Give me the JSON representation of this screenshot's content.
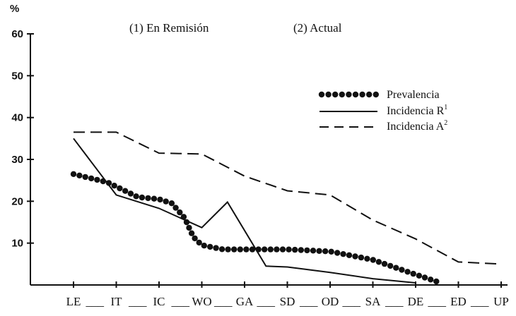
{
  "chart_data": {
    "type": "line",
    "header_notes": [
      "(1)  En Remisión",
      "(2)  Actual"
    ],
    "ylabel": "%",
    "ylim": [
      0,
      60
    ],
    "yticks": [
      10,
      20,
      30,
      40,
      50,
      60
    ],
    "categories": [
      "LE",
      "IT",
      "IC",
      "WO",
      "GA",
      "SD",
      "OD",
      "SA",
      "DE",
      "ED",
      "UP"
    ],
    "category_separators": [
      "___",
      "___",
      "___",
      "___",
      "___",
      "___",
      "___",
      "___",
      "___",
      "___"
    ],
    "grid": false,
    "legend_position": "top-right",
    "legend_superscripts": [
      "1",
      "2"
    ],
    "series": [
      {
        "name": "Prevalencia",
        "style": "dotted",
        "points": [
          [
            0,
            26.5
          ],
          [
            0.8,
            24.5
          ],
          [
            1.5,
            21
          ],
          [
            2,
            20.5
          ],
          [
            2.3,
            19.5
          ],
          [
            2.6,
            16
          ],
          [
            2.8,
            11.5
          ],
          [
            3,
            9.5
          ],
          [
            3.5,
            8.5
          ],
          [
            4,
            8.5
          ],
          [
            5,
            8.5
          ],
          [
            6,
            8
          ],
          [
            7,
            6
          ],
          [
            8,
            2.5
          ],
          [
            8.5,
            0.8
          ]
        ]
      },
      {
        "name": "Incidencia R",
        "style": "solid",
        "points": [
          [
            0,
            35
          ],
          [
            1,
            21.5
          ],
          [
            2,
            18.3
          ],
          [
            3,
            13.7
          ],
          [
            3.6,
            19.8
          ],
          [
            4.5,
            4.5
          ],
          [
            5,
            4.3
          ],
          [
            6,
            3
          ],
          [
            7,
            1.5
          ],
          [
            8,
            0.5
          ]
        ]
      },
      {
        "name": "Incidencia A",
        "style": "dashed",
        "points": [
          [
            0,
            36.5
          ],
          [
            1,
            36.5
          ],
          [
            2,
            31.5
          ],
          [
            3,
            31.3
          ],
          [
            4,
            26
          ],
          [
            5,
            22.5
          ],
          [
            6,
            21.5
          ],
          [
            7,
            15.5
          ],
          [
            8,
            11
          ],
          [
            9,
            5.5
          ],
          [
            10,
            5
          ]
        ]
      }
    ]
  }
}
